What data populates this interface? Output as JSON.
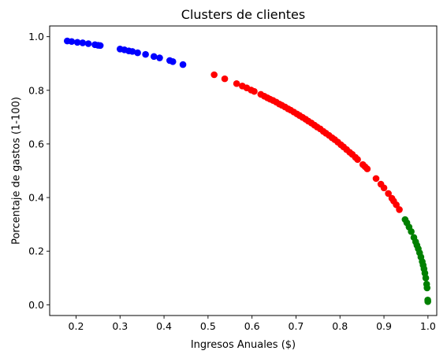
{
  "chart_data": {
    "type": "scatter",
    "title": "Clusters de clientes",
    "xlabel": "Ingresos Anuales ($)",
    "ylabel": "Porcentaje de gastos (1-100)",
    "xlim": [
      0.14,
      1.02
    ],
    "ylim": [
      -0.04,
      1.04
    ],
    "xticks": [
      0.2,
      0.3,
      0.4,
      0.5,
      0.6,
      0.7,
      0.8,
      0.9,
      1.0
    ],
    "xtick_labels": [
      "0.2",
      "0.3",
      "0.4",
      "0.5",
      "0.6",
      "0.7",
      "0.8",
      "0.9",
      "1.0"
    ],
    "yticks": [
      0.0,
      0.2,
      0.4,
      0.6,
      0.8,
      1.0
    ],
    "ytick_labels": [
      "0.0",
      "0.2",
      "0.4",
      "0.6",
      "0.8",
      "1.0"
    ],
    "grid": false,
    "legend": "none",
    "series": [
      {
        "color": "#0000ff",
        "points": [
          [
            0.18,
            0.984
          ],
          [
            0.19,
            0.982
          ],
          [
            0.203,
            0.979
          ],
          [
            0.215,
            0.977
          ],
          [
            0.228,
            0.974
          ],
          [
            0.243,
            0.97
          ],
          [
            0.25,
            0.968
          ],
          [
            0.255,
            0.967
          ],
          [
            0.3,
            0.954
          ],
          [
            0.31,
            0.951
          ],
          [
            0.32,
            0.947
          ],
          [
            0.328,
            0.945
          ],
          [
            0.34,
            0.94
          ],
          [
            0.358,
            0.934
          ],
          [
            0.377,
            0.926
          ],
          [
            0.39,
            0.921
          ],
          [
            0.413,
            0.911
          ],
          [
            0.42,
            0.907
          ],
          [
            0.443,
            0.896
          ]
        ]
      },
      {
        "color": "#ff0000",
        "points": [
          [
            0.514,
            0.858
          ],
          [
            0.538,
            0.843
          ],
          [
            0.565,
            0.825
          ],
          [
            0.578,
            0.816
          ],
          [
            0.588,
            0.809
          ],
          [
            0.598,
            0.801
          ],
          [
            0.605,
            0.796
          ],
          [
            0.62,
            0.785
          ],
          [
            0.628,
            0.778
          ],
          [
            0.635,
            0.772
          ],
          [
            0.641,
            0.767
          ],
          [
            0.648,
            0.762
          ],
          [
            0.655,
            0.756
          ],
          [
            0.662,
            0.749
          ],
          [
            0.668,
            0.744
          ],
          [
            0.675,
            0.738
          ],
          [
            0.682,
            0.731
          ],
          [
            0.688,
            0.726
          ],
          [
            0.695,
            0.719
          ],
          [
            0.702,
            0.712
          ],
          [
            0.708,
            0.706
          ],
          [
            0.715,
            0.699
          ],
          [
            0.722,
            0.692
          ],
          [
            0.728,
            0.685
          ],
          [
            0.735,
            0.678
          ],
          [
            0.742,
            0.67
          ],
          [
            0.748,
            0.663
          ],
          [
            0.755,
            0.656
          ],
          [
            0.762,
            0.647
          ],
          [
            0.768,
            0.64
          ],
          [
            0.775,
            0.632
          ],
          [
            0.782,
            0.623
          ],
          [
            0.788,
            0.616
          ],
          [
            0.795,
            0.607
          ],
          [
            0.802,
            0.597
          ],
          [
            0.808,
            0.589
          ],
          [
            0.815,
            0.579
          ],
          [
            0.822,
            0.569
          ],
          [
            0.828,
            0.561
          ],
          [
            0.835,
            0.55
          ],
          [
            0.84,
            0.542
          ],
          [
            0.852,
            0.523
          ],
          [
            0.857,
            0.515
          ],
          [
            0.862,
            0.507
          ],
          [
            0.882,
            0.471
          ],
          [
            0.893,
            0.45
          ],
          [
            0.9,
            0.436
          ],
          [
            0.91,
            0.415
          ],
          [
            0.918,
            0.397
          ],
          [
            0.922,
            0.387
          ],
          [
            0.928,
            0.373
          ],
          [
            0.935,
            0.355
          ]
        ]
      },
      {
        "color": "#008000",
        "points": [
          [
            0.948,
            0.318
          ],
          [
            0.952,
            0.306
          ],
          [
            0.957,
            0.29
          ],
          [
            0.962,
            0.273
          ],
          [
            0.968,
            0.251
          ],
          [
            0.972,
            0.235
          ],
          [
            0.975,
            0.222
          ],
          [
            0.978,
            0.209
          ],
          [
            0.981,
            0.194
          ],
          [
            0.984,
            0.178
          ],
          [
            0.987,
            0.161
          ],
          [
            0.989,
            0.148
          ],
          [
            0.991,
            0.134
          ],
          [
            0.993,
            0.118
          ],
          [
            0.995,
            0.1
          ],
          [
            0.997,
            0.077
          ],
          [
            0.998,
            0.063
          ],
          [
            0.9995,
            0.018
          ],
          [
            0.9997,
            0.012
          ]
        ]
      }
    ]
  }
}
